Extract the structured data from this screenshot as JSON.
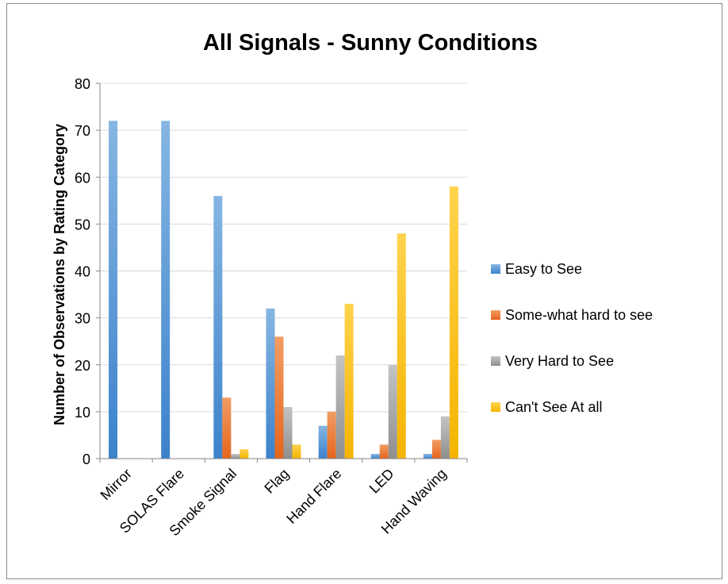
{
  "chart_data": {
    "type": "bar",
    "title": "All Signals - Sunny Conditions",
    "xlabel": "",
    "ylabel": "Number of Observations by Rating Category",
    "categories": [
      "Mirror",
      "SOLAS Flare",
      "Smoke Signal",
      "Flag",
      "Hand Flare",
      "LED",
      "Hand Waving"
    ],
    "ylim": [
      0,
      80
    ],
    "yticks": [
      0,
      10,
      20,
      30,
      40,
      50,
      60,
      70,
      80
    ],
    "grid": true,
    "legend_position": "right",
    "series": [
      {
        "name": "Easy to See",
        "color": "#5B9BD5",
        "values": [
          72,
          72,
          56,
          32,
          7,
          1,
          1
        ]
      },
      {
        "name": "Some-what hard to see",
        "color": "#ED7D31",
        "values": [
          0,
          0,
          13,
          26,
          10,
          3,
          4
        ]
      },
      {
        "name": "Very Hard to See",
        "color": "#A5A5A5",
        "values": [
          0,
          0,
          1,
          11,
          22,
          20,
          9
        ]
      },
      {
        "name": "Can't See At all",
        "color": "#FFC000",
        "values": [
          0,
          0,
          2,
          3,
          33,
          48,
          58
        ]
      }
    ]
  }
}
